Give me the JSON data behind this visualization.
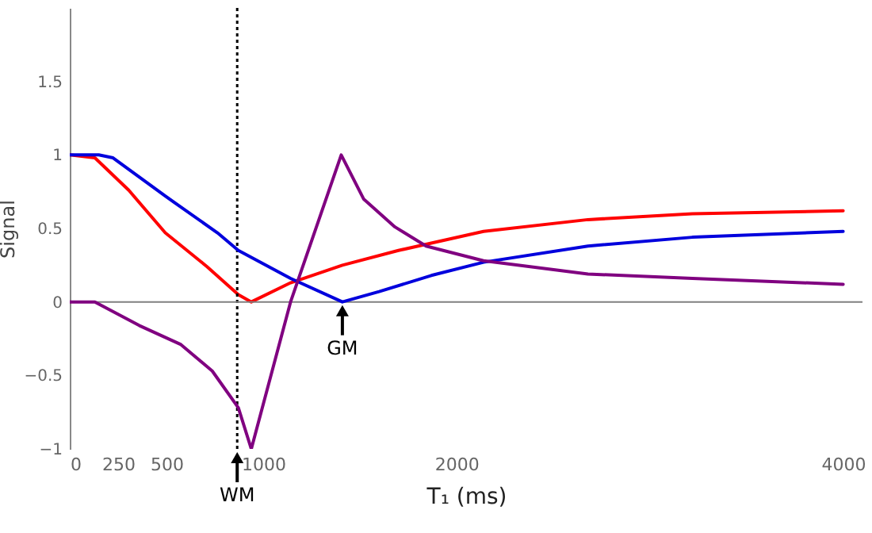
{
  "chart_data": {
    "type": "line",
    "xlabel": "T₁ (ms)",
    "ylabel": "Signal",
    "xlim": [
      0,
      4100
    ],
    "ylim": [
      -1,
      2
    ],
    "xticks": [
      0,
      250,
      500,
      1000,
      2000,
      4000
    ],
    "yticks": [
      {
        "value": -1,
        "label": "−1"
      },
      {
        "value": -0.5,
        "label": "−0.5"
      },
      0,
      0.5,
      1,
      1.5
    ],
    "grid": false,
    "line_style": "solid",
    "series": [
      {
        "color": "#ff0000",
        "x": [
          0,
          130,
          305,
          494,
          710,
          872,
          939,
          1142,
          1410,
          1700,
          1870,
          2140,
          2680,
          3220,
          4000
        ],
        "values": [
          1,
          0.98,
          0.76,
          0.47,
          0.24,
          0.05,
          0,
          0.13,
          0.25,
          0.35,
          0.4,
          0.48,
          0.56,
          0.6,
          0.62
        ]
      },
      {
        "color": "#0000dd",
        "x": [
          0,
          150,
          224,
          494,
          764,
          872,
          1142,
          1410,
          1600,
          1870,
          2140,
          2680,
          3220,
          4000
        ],
        "values": [
          1,
          1,
          0.98,
          0.72,
          0.47,
          0.35,
          0.16,
          0,
          0.07,
          0.18,
          0.27,
          0.38,
          0.44,
          0.48
        ]
      },
      {
        "color": "#800080",
        "x": [
          0,
          130,
          359,
          575,
          737,
          872,
          939,
          1142,
          1404,
          1520,
          1682,
          1843,
          2140,
          2680,
          3220,
          4000
        ],
        "values": [
          0,
          0,
          -0.16,
          -0.29,
          -0.47,
          -0.72,
          -1,
          0,
          1,
          0.7,
          0.51,
          0.38,
          0.28,
          0.19,
          0.16,
          0.12
        ]
      }
    ],
    "ref_lines": [
      {
        "axis": "y",
        "value": 0,
        "color": "#808080",
        "line_style": "solid"
      },
      {
        "axis": "x",
        "value": 866,
        "color": "#000000",
        "line_style": "dotted",
        "label": "WM"
      }
    ],
    "annotations": [
      {
        "text": "GM",
        "x": 1410,
        "y": 0
      }
    ]
  }
}
